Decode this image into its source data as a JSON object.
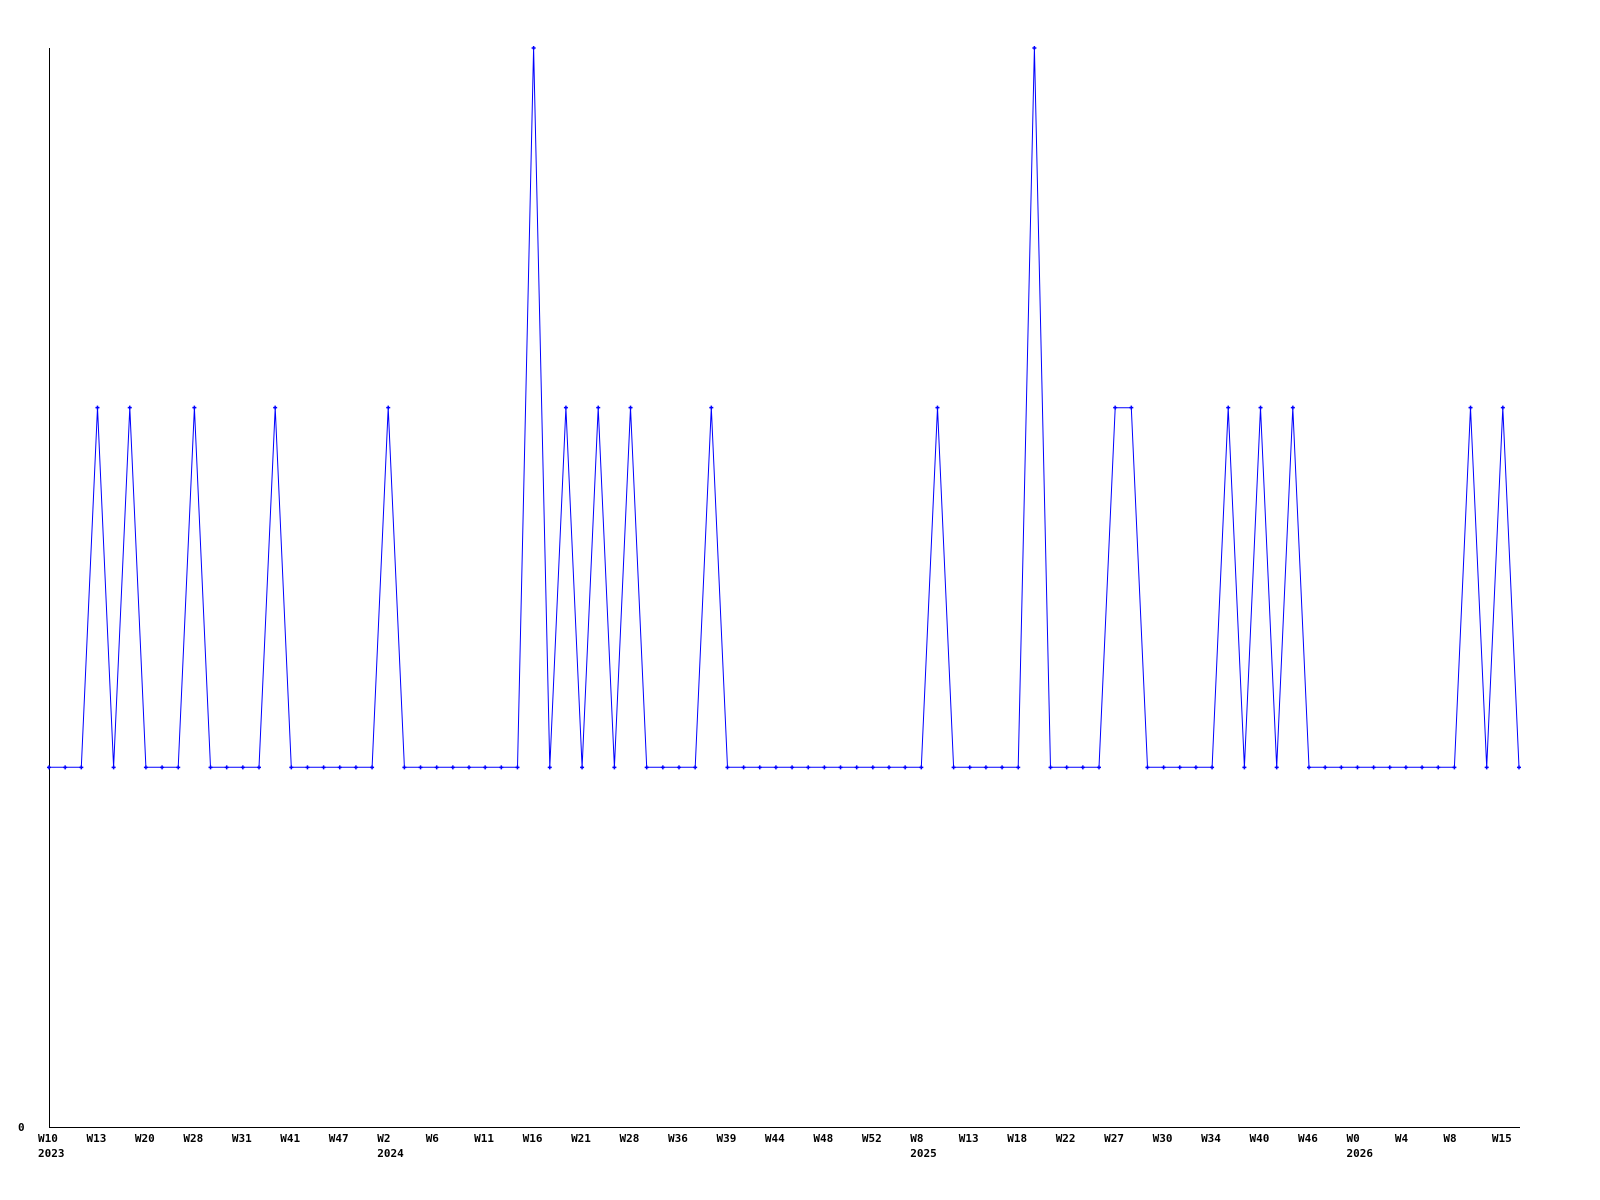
{
  "chart_data": {
    "type": "line",
    "title": "",
    "xlabel": "",
    "ylabel": "",
    "ylim": [
      0,
      3
    ],
    "y_tick_labels": [
      "0"
    ],
    "grid": false,
    "line_color": "#0000ff",
    "axis_color": "#000000",
    "values": [
      1,
      1,
      1,
      2,
      1,
      2,
      1,
      1,
      1,
      2,
      1,
      1,
      1,
      1,
      2,
      1,
      1,
      1,
      1,
      1,
      1,
      2,
      1,
      1,
      1,
      1,
      1,
      1,
      1,
      1,
      3,
      1,
      2,
      1,
      2,
      1,
      2,
      1,
      1,
      1,
      1,
      2,
      1,
      1,
      1,
      1,
      1,
      1,
      1,
      1,
      1,
      1,
      1,
      1,
      1,
      2,
      1,
      1,
      1,
      1,
      1,
      3,
      1,
      1,
      1,
      1,
      2,
      2,
      1,
      1,
      1,
      1,
      1,
      2,
      1,
      2,
      1,
      2,
      1,
      1,
      1,
      1,
      1,
      1,
      1,
      1,
      1,
      1,
      2,
      1,
      2,
      1
    ],
    "x_tick_labels": [
      {
        "index": 0,
        "label": "W10",
        "year": "2023"
      },
      {
        "index": 3,
        "label": "W13"
      },
      {
        "index": 6,
        "label": "W20"
      },
      {
        "index": 9,
        "label": "W28"
      },
      {
        "index": 12,
        "label": "W31"
      },
      {
        "index": 15,
        "label": "W41"
      },
      {
        "index": 18,
        "label": "W47"
      },
      {
        "index": 21,
        "label": "W2",
        "year": "2024"
      },
      {
        "index": 24,
        "label": "W6"
      },
      {
        "index": 27,
        "label": "W11"
      },
      {
        "index": 30,
        "label": "W16"
      },
      {
        "index": 33,
        "label": "W21"
      },
      {
        "index": 36,
        "label": "W28"
      },
      {
        "index": 39,
        "label": "W36"
      },
      {
        "index": 42,
        "label": "W39"
      },
      {
        "index": 45,
        "label": "W44"
      },
      {
        "index": 48,
        "label": "W48"
      },
      {
        "index": 51,
        "label": "W52"
      },
      {
        "index": 54,
        "label": "W8",
        "year": "2025"
      },
      {
        "index": 57,
        "label": "W13"
      },
      {
        "index": 60,
        "label": "W18"
      },
      {
        "index": 63,
        "label": "W22"
      },
      {
        "index": 66,
        "label": "W27"
      },
      {
        "index": 69,
        "label": "W30"
      },
      {
        "index": 72,
        "label": "W34"
      },
      {
        "index": 75,
        "label": "W40"
      },
      {
        "index": 78,
        "label": "W46"
      },
      {
        "index": 81,
        "label": "W0",
        "year": "2026"
      },
      {
        "index": 84,
        "label": "W4"
      },
      {
        "index": 87,
        "label": "W8"
      },
      {
        "index": 90,
        "label": "W15"
      }
    ]
  }
}
